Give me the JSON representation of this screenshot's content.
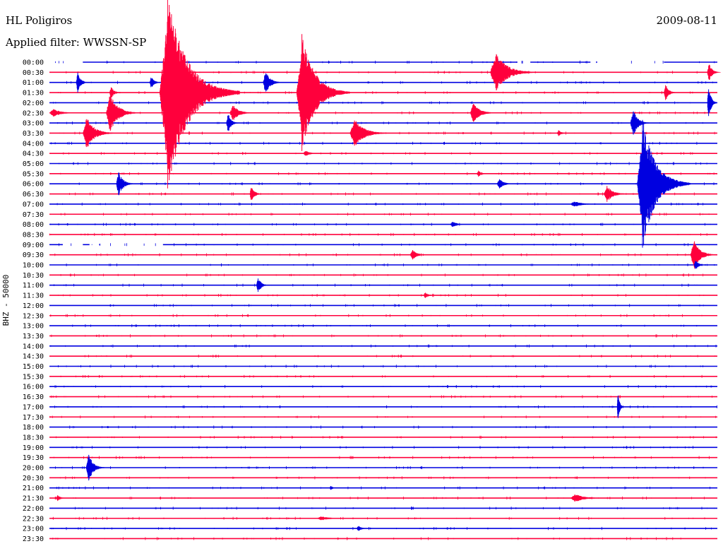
{
  "header": {
    "station": "HL Poligiros",
    "date": "2009-08-11",
    "filter": "Applied filter: WWSSN-SP"
  },
  "axis": {
    "ylabel": "BHZ - 50000"
  },
  "colors": {
    "blue": "#0000e0",
    "red": "#ff003c",
    "text": "#000000",
    "background": "#ffffff"
  },
  "chart_data": {
    "type": "line",
    "title": "HL Poligiros",
    "subtitle": "Applied filter: WWSSN-SP",
    "ylabel": "BHZ - 50000",
    "rows": [
      {
        "label": "00:00",
        "color": "blue",
        "gaps": [
          [
            0.0,
            0.05
          ],
          [
            0.7,
            0.72
          ],
          [
            0.81,
            0.92
          ]
        ]
      },
      {
        "label": "00:30",
        "color": "red"
      },
      {
        "label": "01:00",
        "color": "blue"
      },
      {
        "label": "01:30",
        "color": "red"
      },
      {
        "label": "02:00",
        "color": "blue"
      },
      {
        "label": "02:30",
        "color": "red"
      },
      {
        "label": "03:00",
        "color": "blue"
      },
      {
        "label": "03:30",
        "color": "red"
      },
      {
        "label": "04:00",
        "color": "blue"
      },
      {
        "label": "04:30",
        "color": "red"
      },
      {
        "label": "05:00",
        "color": "blue"
      },
      {
        "label": "05:30",
        "color": "red"
      },
      {
        "label": "06:00",
        "color": "blue"
      },
      {
        "label": "06:30",
        "color": "red"
      },
      {
        "label": "07:00",
        "color": "blue"
      },
      {
        "label": "07:30",
        "color": "red"
      },
      {
        "label": "08:00",
        "color": "blue"
      },
      {
        "label": "08:30",
        "color": "red"
      },
      {
        "label": "09:00",
        "color": "blue",
        "gaps": [
          [
            0.02,
            0.05
          ],
          [
            0.06,
            0.17
          ]
        ]
      },
      {
        "label": "09:30",
        "color": "red"
      },
      {
        "label": "10:00",
        "color": "blue"
      },
      {
        "label": "10:30",
        "color": "red"
      },
      {
        "label": "11:00",
        "color": "blue"
      },
      {
        "label": "11:30",
        "color": "red"
      },
      {
        "label": "12:00",
        "color": "blue"
      },
      {
        "label": "12:30",
        "color": "red"
      },
      {
        "label": "13:00",
        "color": "blue"
      },
      {
        "label": "13:30",
        "color": "red"
      },
      {
        "label": "14:00",
        "color": "blue"
      },
      {
        "label": "14:30",
        "color": "red"
      },
      {
        "label": "15:00",
        "color": "blue"
      },
      {
        "label": "15:30",
        "color": "red"
      },
      {
        "label": "16:00",
        "color": "blue"
      },
      {
        "label": "16:30",
        "color": "red"
      },
      {
        "label": "17:00",
        "color": "blue"
      },
      {
        "label": "17:30",
        "color": "red"
      },
      {
        "label": "18:00",
        "color": "blue"
      },
      {
        "label": "18:30",
        "color": "red"
      },
      {
        "label": "19:00",
        "color": "blue"
      },
      {
        "label": "19:30",
        "color": "red"
      },
      {
        "label": "20:00",
        "color": "blue"
      },
      {
        "label": "20:30",
        "color": "red"
      },
      {
        "label": "21:00",
        "color": "blue"
      },
      {
        "label": "21:30",
        "color": "red"
      },
      {
        "label": "22:00",
        "color": "blue"
      },
      {
        "label": "22:30",
        "color": "red"
      },
      {
        "label": "23:00",
        "color": "blue"
      },
      {
        "label": "23:30",
        "color": "red"
      }
    ],
    "events": [
      {
        "row": 2,
        "t": 0.04,
        "amp": 1.0,
        "len": 0.02,
        "color": "blue"
      },
      {
        "row": 2,
        "t": 0.15,
        "amp": 0.6,
        "len": 0.02,
        "color": "blue"
      },
      {
        "row": 2,
        "t": 0.32,
        "amp": 1.2,
        "len": 0.03,
        "color": "blue"
      },
      {
        "row": 1,
        "t": 0.66,
        "amp": 2.0,
        "len": 0.07,
        "color": "red"
      },
      {
        "row": 1,
        "t": 0.985,
        "amp": 1.0,
        "len": 0.02,
        "color": "red"
      },
      {
        "row": 3,
        "t": 0.09,
        "amp": 0.6,
        "len": 0.02,
        "color": "red"
      },
      {
        "row": 3,
        "t": 0.165,
        "amp": 9.0,
        "len": 0.12,
        "color": "red",
        "spike": true
      },
      {
        "row": 3,
        "t": 0.37,
        "amp": 5.5,
        "len": 0.08,
        "color": "red",
        "spike": true
      },
      {
        "row": 3,
        "t": 0.92,
        "amp": 1.0,
        "len": 0.02,
        "color": "red"
      },
      {
        "row": 4,
        "t": 0.985,
        "amp": 2.0,
        "len": 0.015,
        "color": "blue"
      },
      {
        "row": 5,
        "t": 0.0,
        "amp": 0.4,
        "len": 0.05,
        "color": "red"
      },
      {
        "row": 5,
        "t": 0.085,
        "amp": 2.0,
        "len": 0.05,
        "color": "red"
      },
      {
        "row": 5,
        "t": 0.27,
        "amp": 0.8,
        "len": 0.04,
        "color": "red"
      },
      {
        "row": 5,
        "t": 0.63,
        "amp": 1.0,
        "len": 0.04,
        "color": "red"
      },
      {
        "row": 6,
        "t": 0.265,
        "amp": 1.0,
        "len": 0.02,
        "color": "blue"
      },
      {
        "row": 6,
        "t": 0.87,
        "amp": 1.4,
        "len": 0.03,
        "color": "blue"
      },
      {
        "row": 7,
        "t": 0.05,
        "amp": 1.6,
        "len": 0.05,
        "color": "red"
      },
      {
        "row": 7,
        "t": 0.45,
        "amp": 1.4,
        "len": 0.06,
        "color": "red"
      },
      {
        "row": 7,
        "t": 0.76,
        "amp": 0.3,
        "len": 0.02,
        "color": "red"
      },
      {
        "row": 9,
        "t": 0.38,
        "amp": 0.3,
        "len": 0.03,
        "color": "red"
      },
      {
        "row": 11,
        "t": 0.64,
        "amp": 0.3,
        "len": 0.02,
        "color": "red"
      },
      {
        "row": 12,
        "t": 0.1,
        "amp": 1.2,
        "len": 0.03,
        "color": "blue"
      },
      {
        "row": 12,
        "t": 0.67,
        "amp": 0.5,
        "len": 0.03,
        "color": "blue"
      },
      {
        "row": 12,
        "t": 0.88,
        "amp": 6.0,
        "len": 0.08,
        "color": "blue",
        "spike": true
      },
      {
        "row": 13,
        "t": 0.3,
        "amp": 0.8,
        "len": 0.02,
        "color": "red"
      },
      {
        "row": 13,
        "t": 0.83,
        "amp": 0.8,
        "len": 0.04,
        "color": "red"
      },
      {
        "row": 14,
        "t": 0.78,
        "amp": 0.3,
        "len": 0.05,
        "color": "blue"
      },
      {
        "row": 16,
        "t": 0.6,
        "amp": 0.3,
        "len": 0.03,
        "color": "blue"
      },
      {
        "row": 19,
        "t": 0.54,
        "amp": 0.5,
        "len": 0.03,
        "color": "red"
      },
      {
        "row": 19,
        "t": 0.96,
        "amp": 1.5,
        "len": 0.04,
        "color": "red"
      },
      {
        "row": 20,
        "t": 0.965,
        "amp": 0.5,
        "len": 0.02,
        "color": "blue"
      },
      {
        "row": 22,
        "t": 0.31,
        "amp": 0.8,
        "len": 0.02,
        "color": "blue"
      },
      {
        "row": 23,
        "t": 0.56,
        "amp": 0.3,
        "len": 0.02,
        "color": "red"
      },
      {
        "row": 34,
        "t": 0.85,
        "amp": 1.6,
        "len": 0.01,
        "color": "blue"
      },
      {
        "row": 40,
        "t": 0.055,
        "amp": 1.4,
        "len": 0.03,
        "color": "blue"
      },
      {
        "row": 42,
        "t": 0.42,
        "amp": 0.3,
        "len": 0.01,
        "color": "blue"
      },
      {
        "row": 43,
        "t": 0.01,
        "amp": 0.3,
        "len": 0.02,
        "color": "red"
      },
      {
        "row": 43,
        "t": 0.78,
        "amp": 0.4,
        "len": 0.06,
        "color": "red"
      },
      {
        "row": 45,
        "t": 0.4,
        "amp": 0.2,
        "len": 0.06,
        "color": "red"
      },
      {
        "row": 46,
        "t": 0.46,
        "amp": 0.3,
        "len": 0.02,
        "color": "blue"
      }
    ]
  }
}
